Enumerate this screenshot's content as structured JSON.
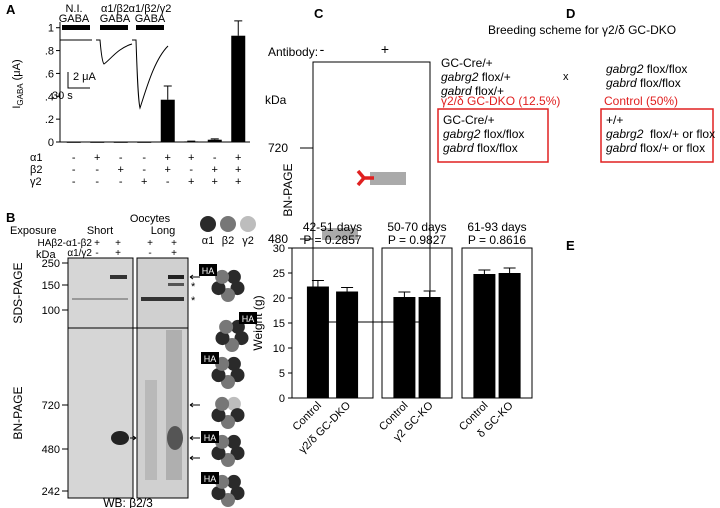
{
  "panels": [
    "A",
    "B",
    "C",
    "D",
    "E"
  ],
  "chart_data": [
    {
      "type": "bar",
      "y_label": {
        "main": "I",
        "sub": "GABA",
        "unit": "(μA)"
      },
      "traces": [
        {
          "name": "N.I.",
          "stimulus": "GABA"
        },
        {
          "name": "α1/β2",
          "stimulus": "GABA"
        },
        {
          "name": "α1/β2/γ2",
          "stimulus": "GABA"
        }
      ],
      "scale_bar": {
        "current": "2 μA",
        "time": "30 s"
      },
      "conditions": [
        {
          "name": "α1",
          "signs": [
            "-",
            "+",
            "-",
            "-",
            "+",
            "+",
            "-",
            "+"
          ]
        },
        {
          "name": "β2",
          "signs": [
            "-",
            "-",
            "+",
            "-",
            "+",
            "-",
            "+",
            "+"
          ]
        },
        {
          "name": "γ2",
          "signs": [
            "-",
            "-",
            "-",
            "+",
            "-",
            "+",
            "+",
            "+"
          ]
        }
      ],
      "values": [
        0,
        0,
        0,
        0,
        0.37,
        0.005,
        0.02,
        0.93
      ],
      "errors": [
        0,
        0,
        0,
        0,
        0.12,
        0.003,
        0.007,
        0.13
      ],
      "color": "#000000",
      "ylim": [
        0,
        1.05
      ],
      "yticks": [
        0,
        {
          "value": 0.2,
          "label": ".2"
        },
        {
          "value": 0.4,
          "label": ".4"
        },
        {
          "value": 0.6,
          "label": ".6"
        },
        {
          "value": 0.8,
          "label": ".8"
        },
        1
      ]
    },
    {
      "type": "bar",
      "groups": [
        {
          "title": "42-51 days",
          "p": "P = 0.2857"
        },
        {
          "title": "50-70 days",
          "p": "P = 0.9827"
        },
        {
          "title": "61-93 days",
          "p": "P = 0.8616"
        }
      ],
      "categories": [
        "Control",
        "γ2/δ GC-DKO",
        "Control",
        "γ2 GC-KO",
        "Control",
        "δ GC-KO"
      ],
      "values": [
        22.3,
        21.3,
        20.2,
        20.2,
        24.8,
        25.0
      ],
      "errors": [
        1.2,
        0.8,
        1.0,
        1.2,
        0.8,
        1.0
      ],
      "color": "#000000",
      "y_label": "Weight (g)",
      "ylim": [
        0,
        30
      ],
      "yticks": [
        0,
        5,
        10,
        15,
        20,
        25,
        30
      ]
    }
  ],
  "panel_b": {
    "title": "Oocytes",
    "exposure": "Exposure",
    "short": "Short",
    "long": "Long",
    "rows": [
      {
        "name": "HAβ2-α1-β2",
        "signs": [
          "+",
          "+",
          "+",
          "+"
        ]
      },
      {
        "name": "α1/γ2",
        "signs": [
          "-",
          "+",
          "-",
          "+"
        ]
      }
    ],
    "kda": "kDa",
    "sds_markers": [
      250,
      150,
      100
    ],
    "bn_markers": [
      720,
      480,
      242
    ],
    "sds": "SDS-PAGE",
    "bn": "BN-PAGE",
    "wb": "WB: β2/3",
    "subunits": [
      "α1",
      "β2",
      "γ2"
    ],
    "ha": "HA",
    "asterisk": "*"
  },
  "panel_c": {
    "antibody": "Antibody:",
    "signs": [
      "-",
      "+"
    ],
    "kda": "kDa",
    "markers": [
      720,
      480
    ],
    "label": "BN-PAGE"
  },
  "panel_d": {
    "title": "Breeding scheme for γ2/δ GC-DKO",
    "parent1": [
      [
        "GC-Cre/+"
      ],
      [
        "gabrg2",
        " flox/+"
      ],
      [
        "gabrd",
        " flox/+"
      ]
    ],
    "cross": "x",
    "parent2": [
      [
        "gabrg2",
        " flox/flox"
      ],
      [
        "gabrd",
        " flox/flox"
      ]
    ],
    "offspring": [
      {
        "label": "γ2/δ GC-DKO (12.5%)",
        "genotype": [
          [
            "GC-Cre/+"
          ],
          [
            "gabrg2",
            " flox/flox"
          ],
          [
            "gabrd",
            " flox/flox"
          ]
        ]
      },
      {
        "label": "Control (50%)",
        "genotype": [
          [
            "+/+"
          ],
          [
            "gabrg2",
            "  flox/+ or flox"
          ],
          [
            "gabrd",
            " flox/+ or flox"
          ]
        ]
      }
    ]
  }
}
